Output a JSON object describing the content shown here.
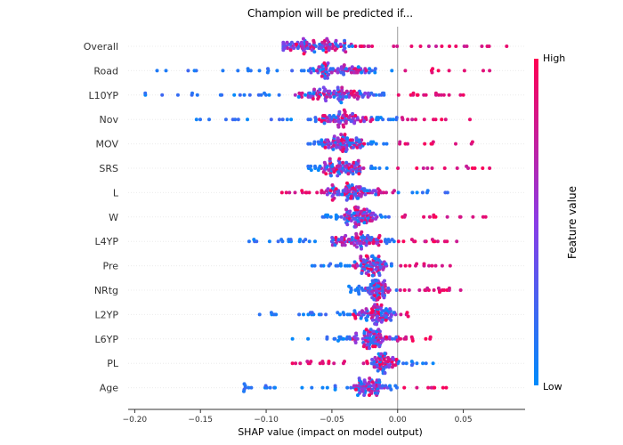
{
  "chart_data": {
    "type": "scatter",
    "subtype": "shap-beeswarm",
    "title": "Champion will be predicted if...",
    "xlabel": "SHAP value (impact on model output)",
    "xlim": [
      -0.205,
      0.097
    ],
    "xticks": [
      -0.2,
      -0.15,
      -0.1,
      -0.05,
      0.0,
      0.05
    ],
    "xtick_labels": [
      "−0.20",
      "−0.15",
      "−0.10",
      "−0.05",
      "0.00",
      "0.05"
    ],
    "colorbar": {
      "label": "Feature value",
      "high": "High",
      "low": "Low"
    },
    "colors": {
      "low": "#008bfb",
      "high": "#ff0052"
    },
    "features": [
      {
        "name": "Overall",
        "min": -0.087,
        "max": 0.083,
        "center": -0.062,
        "spread": 0.028,
        "n": 120,
        "neg": "high",
        "pos": "high"
      },
      {
        "name": "Road",
        "min": -0.183,
        "max": 0.07,
        "center": -0.045,
        "spread": 0.022,
        "n": 110,
        "neg": "low",
        "pos": "high"
      },
      {
        "name": "L10YP",
        "min": -0.192,
        "max": 0.05,
        "center": -0.048,
        "spread": 0.03,
        "n": 140,
        "neg": "low",
        "pos": "high"
      },
      {
        "name": "Nov",
        "min": -0.153,
        "max": 0.055,
        "center": -0.04,
        "spread": 0.022,
        "n": 115,
        "neg": "low",
        "pos": "high"
      },
      {
        "name": "MOV",
        "min": -0.068,
        "max": 0.057,
        "center": -0.04,
        "spread": 0.018,
        "n": 110,
        "neg": "low",
        "pos": "high"
      },
      {
        "name": "SRS",
        "min": -0.068,
        "max": 0.07,
        "center": -0.04,
        "spread": 0.018,
        "n": 110,
        "neg": "low",
        "pos": "high"
      },
      {
        "name": "L",
        "min": -0.088,
        "max": 0.038,
        "center": -0.035,
        "spread": 0.02,
        "n": 115,
        "neg": "high",
        "pos": "low"
      },
      {
        "name": "W",
        "min": -0.057,
        "max": 0.067,
        "center": -0.03,
        "spread": 0.015,
        "n": 110,
        "neg": "low",
        "pos": "high"
      },
      {
        "name": "L4YP",
        "min": -0.113,
        "max": 0.045,
        "center": -0.03,
        "spread": 0.02,
        "n": 120,
        "neg": "low",
        "pos": "high"
      },
      {
        "name": "Pre",
        "min": -0.065,
        "max": 0.04,
        "center": -0.02,
        "spread": 0.015,
        "n": 105,
        "neg": "low",
        "pos": "high"
      },
      {
        "name": "NRtg",
        "min": -0.037,
        "max": 0.048,
        "center": -0.015,
        "spread": 0.01,
        "n": 100,
        "neg": "low",
        "pos": "high"
      },
      {
        "name": "L2YP",
        "min": -0.105,
        "max": 0.008,
        "center": -0.018,
        "spread": 0.018,
        "n": 110,
        "neg": "low",
        "pos": "high"
      },
      {
        "name": "L6YP",
        "min": -0.08,
        "max": 0.025,
        "center": -0.02,
        "spread": 0.016,
        "n": 110,
        "neg": "low",
        "pos": "high"
      },
      {
        "name": "PL",
        "min": -0.08,
        "max": 0.027,
        "center": -0.012,
        "spread": 0.01,
        "n": 95,
        "neg": "high",
        "pos": "low"
      },
      {
        "name": "Age",
        "min": -0.117,
        "max": 0.037,
        "center": -0.02,
        "spread": 0.014,
        "n": 105,
        "neg": "low",
        "pos": "high"
      }
    ]
  }
}
